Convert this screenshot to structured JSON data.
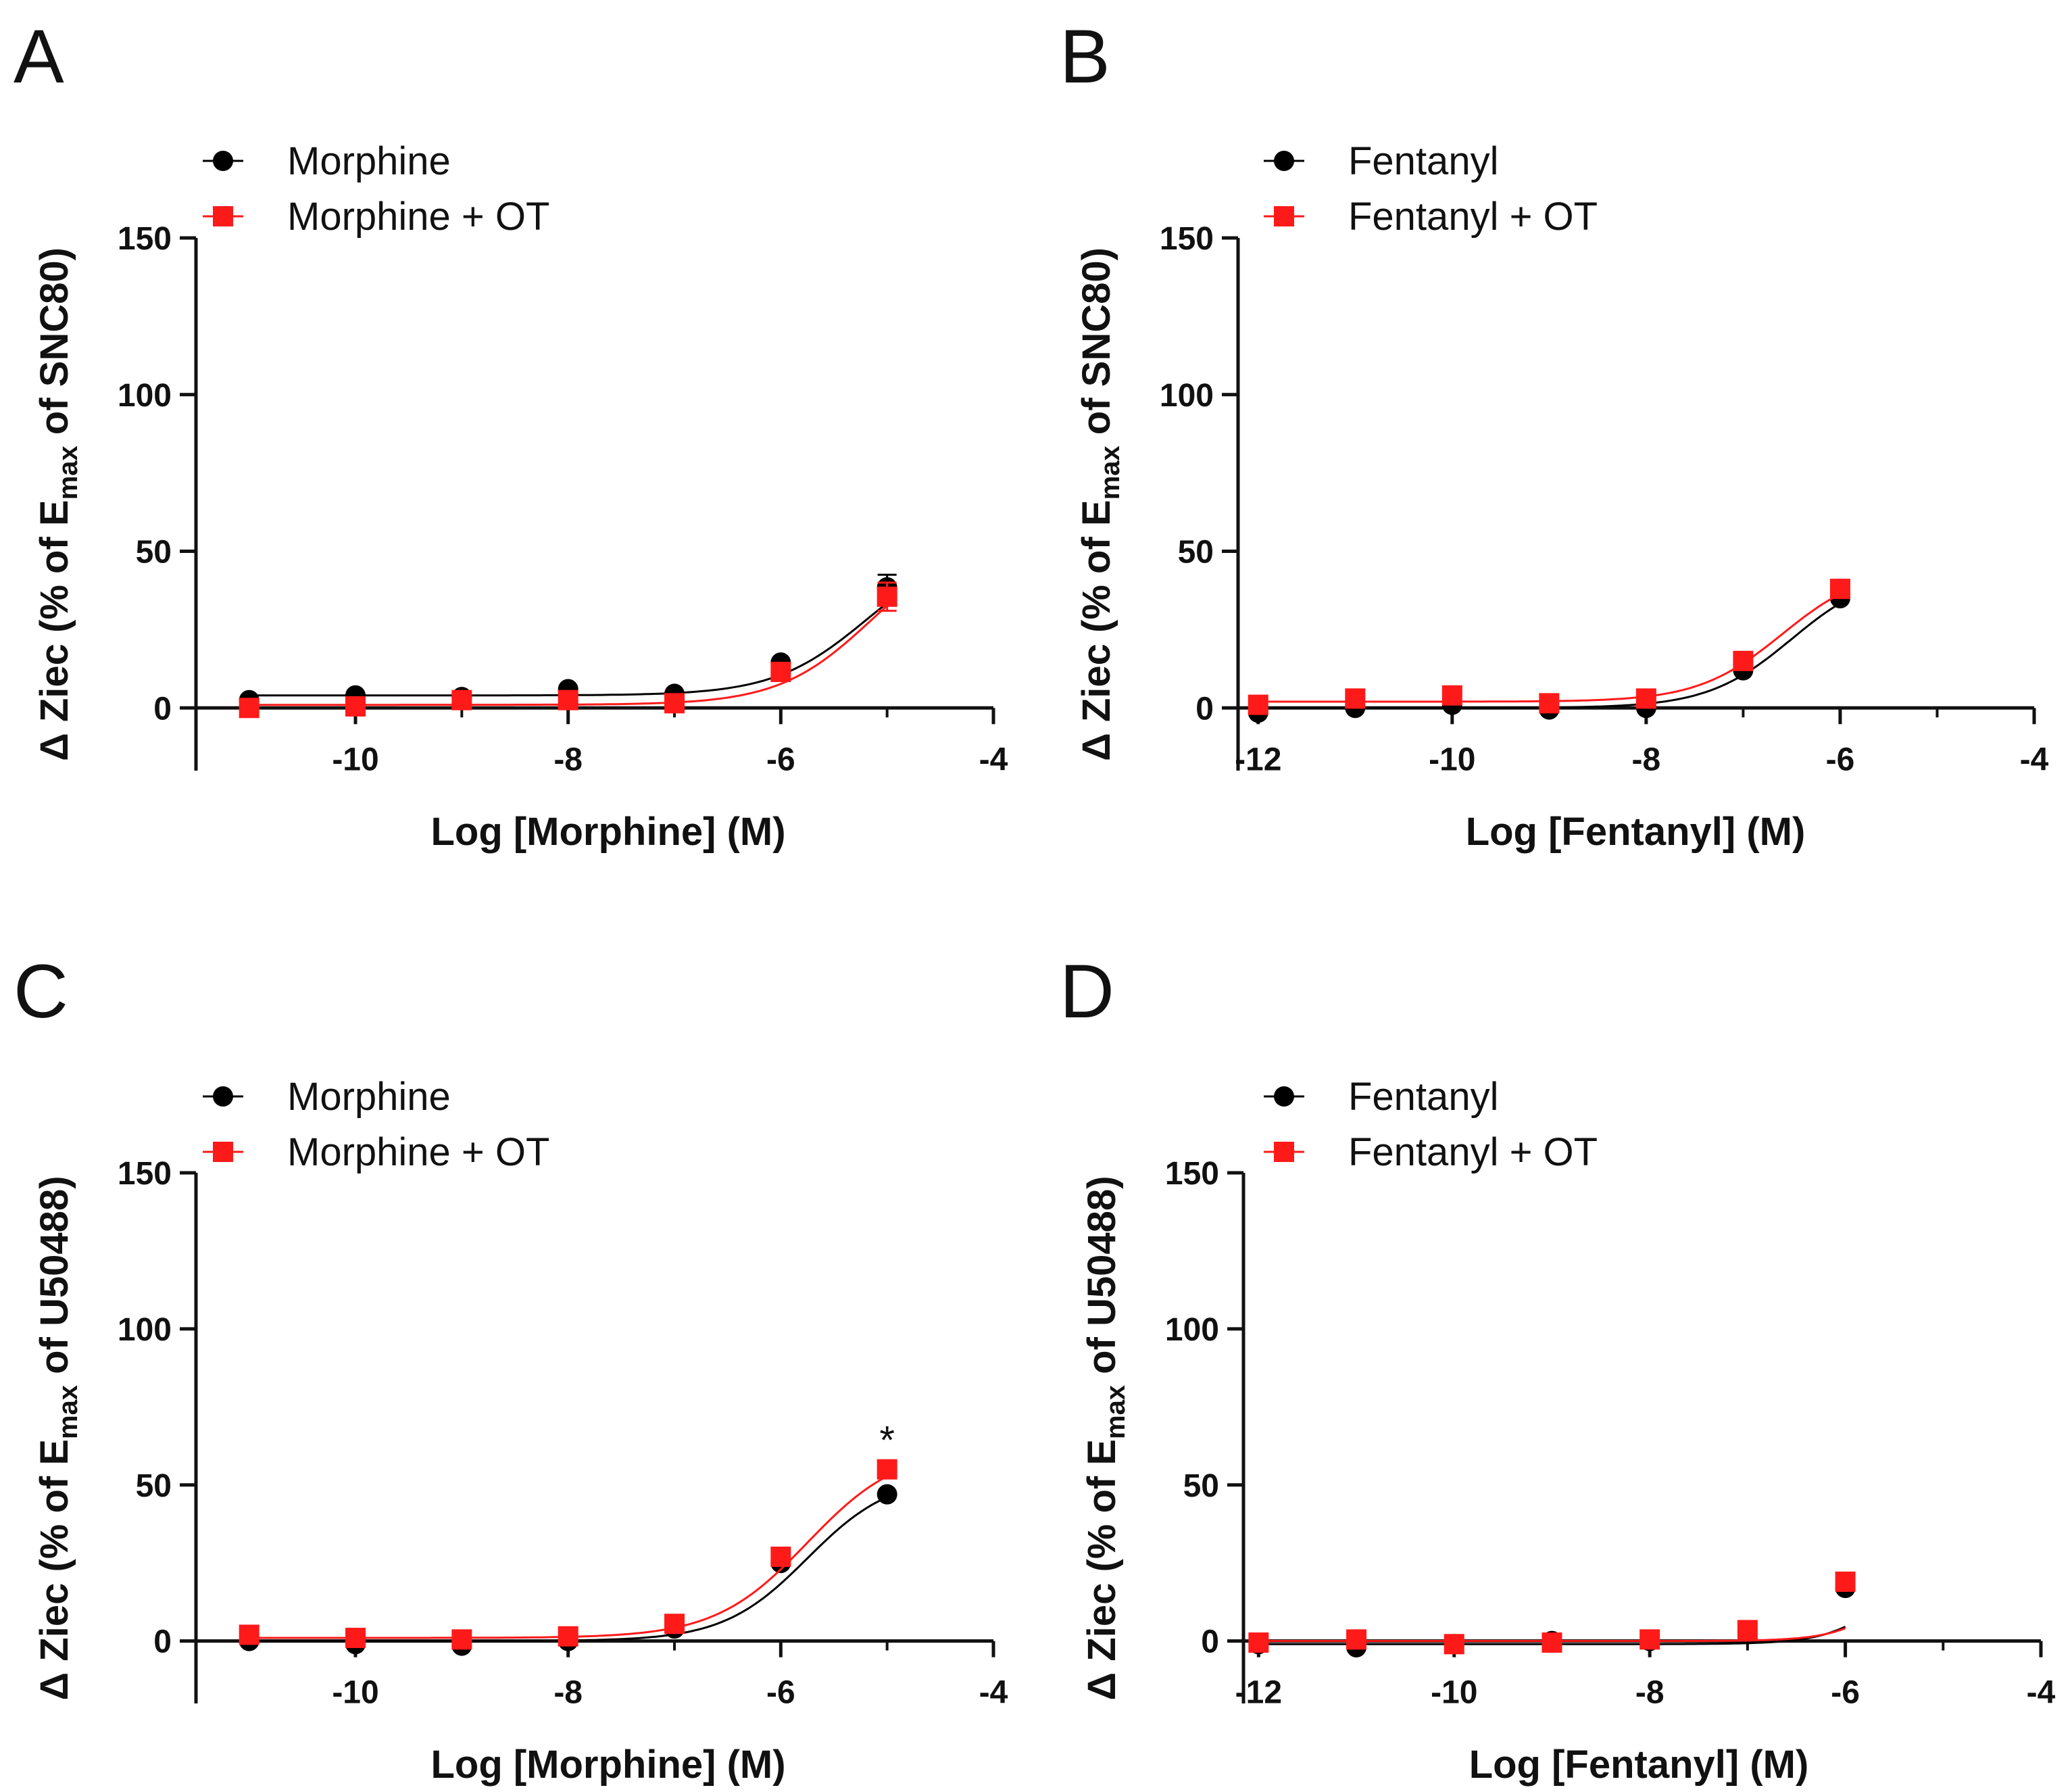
{
  "colors": {
    "series_black": "#000000",
    "series_red": "#ff1a1a",
    "axis": "#111111"
  },
  "chart_data": [
    {
      "panel": "A",
      "type": "line",
      "xlabel": "Log [Morphine] (M)",
      "ylabel": {
        "main": "Δ Ziec (% of E",
        "sub": "max",
        "tail": " of SNC80)"
      },
      "xlim": [
        -11.5,
        -4
      ],
      "ylim": [
        -20,
        150
      ],
      "xticks": [
        "-10",
        "-8",
        "-6",
        "-4"
      ],
      "yticks": [
        "0",
        "50",
        "100",
        "150"
      ],
      "legend_position": "top-left",
      "series": [
        {
          "name": "Morphine",
          "color": "#000000",
          "marker": "circle",
          "x": [
            -11,
            -10,
            -9,
            -8,
            -7,
            -6,
            -5
          ],
          "y": [
            2.5,
            4,
            3.5,
            6,
            4.5,
            14.5,
            38.5
          ],
          "err": [
            0,
            0,
            0,
            0,
            0,
            0,
            4
          ],
          "curve": {
            "bottom": 4,
            "top": 52,
            "logec50": -5.2,
            "hill": 1.0
          }
        },
        {
          "name": "Morphine + OT",
          "color": "#ff1a1a",
          "marker": "square",
          "x": [
            -11,
            -10,
            -9,
            -8,
            -7,
            -6,
            -5
          ],
          "y": [
            0,
            0.5,
            2.5,
            2.5,
            1.5,
            11.5,
            35.5
          ],
          "err": [
            0,
            0,
            0,
            0,
            0,
            0,
            4.5
          ],
          "curve": {
            "bottom": 1,
            "top": 55,
            "logec50": -5.15,
            "hill": 1.0
          }
        }
      ]
    },
    {
      "panel": "B",
      "type": "line",
      "xlabel": "Log [Fentanyl] (M)",
      "ylabel": {
        "main": "Δ Ziec (% of E",
        "sub": "max",
        "tail": " of SNC80)"
      },
      "xlim": [
        -12.5,
        -4
      ],
      "ylim": [
        -20,
        150
      ],
      "xticks": [
        "-12",
        "-10",
        "-8",
        "-6",
        "-4"
      ],
      "yticks": [
        "0",
        "50",
        "100",
        "150"
      ],
      "legend_position": "top-left",
      "series": [
        {
          "name": "Fentanyl",
          "color": "#000000",
          "marker": "circle",
          "x": [
            -12,
            -11,
            -10,
            -9,
            -8,
            -7,
            -6
          ],
          "y": [
            -1.5,
            0,
            1,
            -0.5,
            0,
            12,
            35
          ],
          "curve": {
            "bottom": 0,
            "top": 44,
            "logec50": -6.5,
            "hill": 1.0
          }
        },
        {
          "name": "Fentanyl + OT",
          "color": "#ff1a1a",
          "marker": "square",
          "x": [
            -12,
            -11,
            -10,
            -9,
            -8,
            -7,
            -6
          ],
          "y": [
            1,
            3,
            4,
            1.5,
            3,
            15,
            38
          ],
          "curve": {
            "bottom": 2,
            "top": 45,
            "logec50": -6.6,
            "hill": 1.0
          }
        }
      ]
    },
    {
      "panel": "C",
      "type": "line",
      "xlabel": "Log [Morphine] (M)",
      "ylabel": {
        "main": "Δ Ziec (% of E",
        "sub": "max",
        "tail": " of U50488)"
      },
      "xlim": [
        -11.5,
        -4
      ],
      "ylim": [
        -20,
        150
      ],
      "xticks": [
        "-10",
        "-8",
        "-6",
        "-4"
      ],
      "yticks": [
        "0",
        "50",
        "100",
        "150"
      ],
      "legend_position": "top-left",
      "annotations": [
        {
          "text": "*",
          "x": -5,
          "y": 60
        }
      ],
      "series": [
        {
          "name": "Morphine",
          "color": "#000000",
          "marker": "circle",
          "x": [
            -11,
            -10,
            -9,
            -8,
            -7,
            -6,
            -5
          ],
          "y": [
            0,
            -1,
            -1.5,
            0,
            4,
            25,
            47
          ],
          "curve": {
            "bottom": 0,
            "top": 53,
            "logec50": -5.75,
            "hill": 1.1
          }
        },
        {
          "name": "Morphine + OT",
          "color": "#ff1a1a",
          "marker": "square",
          "x": [
            -11,
            -10,
            -9,
            -8,
            -7,
            -6,
            -5
          ],
          "y": [
            2,
            1,
            0.5,
            1.5,
            5.5,
            27,
            55
          ],
          "curve": {
            "bottom": 1,
            "top": 62,
            "logec50": -5.75,
            "hill": 1.0
          }
        }
      ]
    },
    {
      "panel": "D",
      "type": "line",
      "xlabel": "Log [Fentanyl] (M)",
      "ylabel": {
        "main": "Δ Ziec (% of E",
        "sub": "max",
        "tail": " of U50488)"
      },
      "xlim": [
        -12.5,
        -4
      ],
      "ylim": [
        -20,
        150
      ],
      "xticks": [
        "-12",
        "-10",
        "-8",
        "-6",
        "-4"
      ],
      "yticks": [
        "0",
        "50",
        "100",
        "150"
      ],
      "legend_position": "top-left",
      "series": [
        {
          "name": "Fentanyl",
          "color": "#000000",
          "marker": "circle",
          "x": [
            -12,
            -11,
            -10,
            -9,
            -8,
            -7,
            -6
          ],
          "y": [
            -1,
            -2,
            -1,
            0,
            0,
            3,
            17
          ],
          "curve": {
            "bottom": -1,
            "top": 50,
            "logec50": -5.3,
            "hill": 1.3
          }
        },
        {
          "name": "Fentanyl + OT",
          "color": "#ff1a1a",
          "marker": "square",
          "x": [
            -12,
            -11,
            -10,
            -9,
            -8,
            -7,
            -6
          ],
          "y": [
            -0.5,
            0.5,
            -1,
            -0.5,
            0.5,
            3.5,
            19
          ],
          "curve": {
            "bottom": 0,
            "top": 50,
            "logec50": -5.25,
            "hill": 1.4
          }
        }
      ]
    }
  ]
}
